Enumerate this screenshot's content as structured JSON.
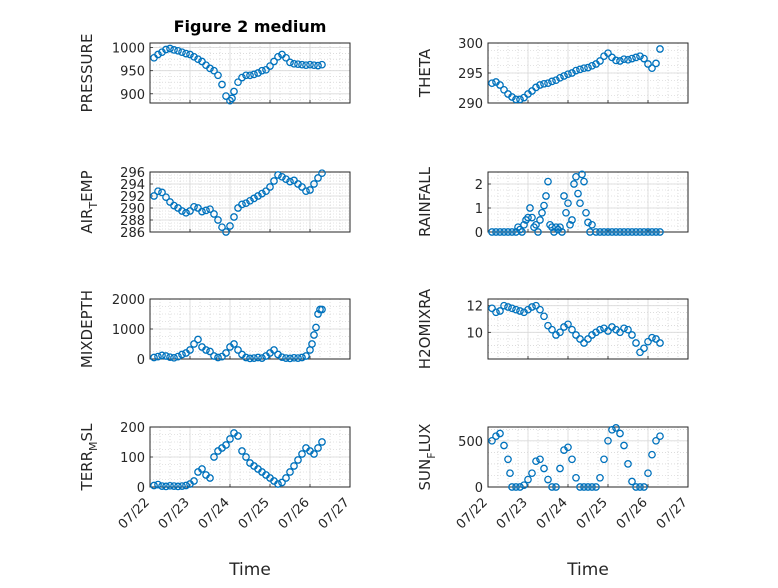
{
  "figure": {
    "title": "Figure 2 medium",
    "marker_color": "#0072BD",
    "x_axis_label": "Time",
    "x_ticks": [
      "07/22",
      "07/23",
      "07/24",
      "07/25",
      "07/26",
      "07/27"
    ]
  },
  "chart_data": [
    {
      "type": "scatter",
      "title": "Figure 2 medium",
      "ylabel": "PRESSURE",
      "xlim": [
        0,
        5
      ],
      "ylim": [
        880,
        1010
      ],
      "yticks": [
        900,
        950,
        1000
      ],
      "grid": true,
      "x": [
        0.1,
        0.2,
        0.3,
        0.4,
        0.5,
        0.6,
        0.7,
        0.8,
        0.9,
        1.0,
        1.1,
        1.2,
        1.3,
        1.4,
        1.5,
        1.6,
        1.7,
        1.8,
        1.9,
        2.0,
        2.05,
        2.1,
        2.2,
        2.3,
        2.4,
        2.5,
        2.6,
        2.7,
        2.8,
        2.9,
        3.0,
        3.1,
        3.2,
        3.3,
        3.4,
        3.5,
        3.6,
        3.7,
        3.8,
        3.9,
        4.0,
        4.1,
        4.2,
        4.3
      ],
      "y": [
        978,
        985,
        990,
        996,
        998,
        995,
        993,
        990,
        987,
        985,
        980,
        975,
        970,
        962,
        955,
        950,
        940,
        920,
        895,
        885,
        890,
        905,
        925,
        935,
        940,
        940,
        942,
        945,
        950,
        952,
        960,
        970,
        980,
        985,
        978,
        968,
        965,
        964,
        963,
        962,
        963,
        962,
        961,
        963
      ]
    },
    {
      "type": "scatter",
      "title": "",
      "ylabel": "THETA",
      "xlim": [
        0,
        5
      ],
      "ylim": [
        290,
        300
      ],
      "yticks": [
        290,
        295,
        300
      ],
      "grid": true,
      "x": [
        0.1,
        0.2,
        0.3,
        0.4,
        0.5,
        0.6,
        0.7,
        0.8,
        0.9,
        1.0,
        1.1,
        1.2,
        1.3,
        1.4,
        1.5,
        1.6,
        1.7,
        1.8,
        1.9,
        2.0,
        2.1,
        2.2,
        2.3,
        2.4,
        2.5,
        2.6,
        2.7,
        2.8,
        2.9,
        3.0,
        3.1,
        3.2,
        3.3,
        3.4,
        3.5,
        3.6,
        3.7,
        3.8,
        3.9,
        4.0,
        4.1,
        4.2,
        4.3
      ],
      "y": [
        293.3,
        293.5,
        293.0,
        292.2,
        291.5,
        291.0,
        290.6,
        290.6,
        290.9,
        291.5,
        292.0,
        292.6,
        293.0,
        293.2,
        293.3,
        293.6,
        293.8,
        294.2,
        294.5,
        294.8,
        295.0,
        295.4,
        295.6,
        295.8,
        295.9,
        296.2,
        296.5,
        297.0,
        297.8,
        298.3,
        297.6,
        297.1,
        297.0,
        297.3,
        297.2,
        297.4,
        297.6,
        297.8,
        297.4,
        296.5,
        295.8,
        296.6,
        299.0
      ]
    },
    {
      "type": "scatter",
      "title": "",
      "ylabel": "AIR_TEMP",
      "xlim": [
        0,
        5
      ],
      "ylim": [
        286,
        296
      ],
      "yticks": [
        286,
        288,
        290,
        292,
        294,
        296
      ],
      "grid": true,
      "x": [
        0.1,
        0.2,
        0.3,
        0.4,
        0.5,
        0.6,
        0.7,
        0.8,
        0.9,
        1.0,
        1.1,
        1.2,
        1.3,
        1.4,
        1.5,
        1.6,
        1.7,
        1.8,
        1.9,
        2.0,
        2.1,
        2.2,
        2.3,
        2.4,
        2.5,
        2.6,
        2.7,
        2.8,
        2.9,
        3.0,
        3.1,
        3.2,
        3.3,
        3.4,
        3.5,
        3.6,
        3.7,
        3.8,
        3.9,
        4.0,
        4.1,
        4.2,
        4.3
      ],
      "y": [
        292.0,
        292.8,
        292.6,
        291.8,
        291.0,
        290.4,
        290.0,
        289.5,
        289.2,
        289.5,
        290.2,
        290.0,
        289.4,
        289.6,
        289.8,
        289.0,
        288.0,
        286.8,
        286.0,
        287.0,
        288.5,
        290.0,
        290.6,
        290.8,
        291.2,
        291.6,
        292.0,
        292.4,
        292.8,
        293.5,
        294.5,
        295.5,
        295.2,
        294.8,
        294.4,
        294.6,
        294.0,
        293.5,
        292.8,
        293.0,
        294.0,
        295.0,
        295.8
      ]
    },
    {
      "type": "scatter",
      "title": "",
      "ylabel": "RAINFALL",
      "xlim": [
        0,
        5
      ],
      "ylim": [
        0,
        2.5
      ],
      "yticks": [
        0,
        1,
        2
      ],
      "grid": true,
      "x": [
        0.1,
        0.2,
        0.3,
        0.4,
        0.5,
        0.6,
        0.7,
        0.75,
        0.8,
        0.85,
        0.9,
        0.95,
        1.0,
        1.05,
        1.1,
        1.15,
        1.2,
        1.25,
        1.3,
        1.35,
        1.4,
        1.45,
        1.5,
        1.55,
        1.6,
        1.65,
        1.7,
        1.75,
        1.8,
        1.85,
        1.9,
        1.95,
        2.0,
        2.05,
        2.1,
        2.15,
        2.2,
        2.25,
        2.3,
        2.35,
        2.4,
        2.45,
        2.5,
        2.55,
        2.6,
        2.7,
        2.8,
        2.9,
        3.0,
        3.1,
        3.2,
        3.3,
        3.4,
        3.5,
        3.6,
        3.7,
        3.8,
        3.9,
        4.0,
        4.1,
        4.2,
        4.3
      ],
      "y": [
        0,
        0,
        0,
        0,
        0,
        0,
        0,
        0.2,
        0.1,
        0,
        0.3,
        0.5,
        0.6,
        1.0,
        0.6,
        0.2,
        0.3,
        0,
        0.5,
        0.8,
        1.1,
        1.5,
        2.1,
        0.3,
        0.2,
        0,
        0.2,
        0.1,
        0.2,
        0,
        1.5,
        0.8,
        1.2,
        0.3,
        0.5,
        2.0,
        2.3,
        1.6,
        1.2,
        2.4,
        2.1,
        0.8,
        0.4,
        0,
        0.3,
        0,
        0,
        0,
        0,
        0,
        0,
        0,
        0,
        0,
        0,
        0,
        0,
        0,
        0,
        0,
        0,
        0
      ]
    },
    {
      "type": "scatter",
      "title": "",
      "ylabel": "MIXDEPTH",
      "xlim": [
        0,
        5
      ],
      "ylim": [
        0,
        2000
      ],
      "yticks": [
        0,
        1000,
        2000
      ],
      "grid": true,
      "x": [
        0.1,
        0.2,
        0.3,
        0.4,
        0.5,
        0.6,
        0.7,
        0.8,
        0.9,
        1.0,
        1.1,
        1.2,
        1.3,
        1.4,
        1.5,
        1.6,
        1.7,
        1.8,
        1.9,
        2.0,
        2.1,
        2.2,
        2.3,
        2.4,
        2.5,
        2.6,
        2.7,
        2.8,
        2.9,
        3.0,
        3.1,
        3.2,
        3.3,
        3.4,
        3.5,
        3.6,
        3.7,
        3.8,
        3.9,
        4.0,
        4.05,
        4.1,
        4.15,
        4.2,
        4.25,
        4.3
      ],
      "y": [
        50,
        80,
        120,
        100,
        60,
        40,
        80,
        150,
        200,
        300,
        500,
        650,
        400,
        300,
        250,
        100,
        50,
        80,
        200,
        400,
        500,
        300,
        150,
        50,
        20,
        30,
        50,
        30,
        100,
        200,
        300,
        150,
        60,
        30,
        20,
        40,
        30,
        50,
        100,
        300,
        500,
        800,
        1050,
        1500,
        1650,
        1650
      ]
    },
    {
      "type": "scatter",
      "title": "",
      "ylabel": "H2OMIXRA",
      "xlim": [
        0,
        5
      ],
      "ylim": [
        8,
        12.5
      ],
      "yticks": [
        10,
        12
      ],
      "grid": true,
      "x": [
        0.1,
        0.2,
        0.3,
        0.4,
        0.5,
        0.6,
        0.7,
        0.8,
        0.9,
        1.0,
        1.1,
        1.2,
        1.3,
        1.4,
        1.5,
        1.6,
        1.7,
        1.8,
        1.9,
        2.0,
        2.1,
        2.2,
        2.3,
        2.4,
        2.5,
        2.6,
        2.7,
        2.8,
        2.9,
        3.0,
        3.1,
        3.2,
        3.3,
        3.4,
        3.5,
        3.6,
        3.7,
        3.8,
        3.9,
        4.0,
        4.1,
        4.2,
        4.3
      ],
      "y": [
        11.8,
        11.5,
        11.6,
        12.0,
        11.9,
        11.8,
        11.7,
        11.6,
        11.5,
        11.7,
        11.9,
        12.0,
        11.7,
        11.2,
        10.5,
        10.2,
        9.8,
        10.0,
        10.4,
        10.6,
        10.2,
        9.8,
        9.5,
        9.2,
        9.5,
        9.8,
        10.0,
        10.2,
        10.3,
        10.1,
        10.4,
        10.2,
        10.0,
        10.3,
        10.2,
        9.8,
        9.2,
        8.5,
        8.8,
        9.3,
        9.6,
        9.5,
        9.2
      ]
    },
    {
      "type": "scatter",
      "title": "",
      "ylabel": "TERR_MSL",
      "xlim": [
        0,
        5
      ],
      "ylim": [
        0,
        200
      ],
      "yticks": [
        0,
        100,
        200
      ],
      "grid": true,
      "x": [
        0.1,
        0.2,
        0.3,
        0.4,
        0.5,
        0.6,
        0.7,
        0.8,
        0.9,
        1.0,
        1.1,
        1.2,
        1.3,
        1.4,
        1.5,
        1.6,
        1.7,
        1.8,
        1.9,
        2.0,
        2.1,
        2.2,
        2.3,
        2.4,
        2.5,
        2.6,
        2.7,
        2.8,
        2.9,
        3.0,
        3.1,
        3.2,
        3.3,
        3.4,
        3.5,
        3.6,
        3.7,
        3.8,
        3.9,
        4.0,
        4.1,
        4.2,
        4.3
      ],
      "y": [
        5,
        8,
        3,
        2,
        4,
        3,
        2,
        3,
        5,
        10,
        20,
        50,
        60,
        40,
        30,
        100,
        120,
        130,
        140,
        160,
        180,
        170,
        120,
        100,
        80,
        70,
        60,
        50,
        40,
        30,
        20,
        10,
        15,
        30,
        50,
        70,
        90,
        110,
        130,
        120,
        110,
        130,
        150
      ]
    },
    {
      "type": "scatter",
      "title": "",
      "ylabel": "SUN_FLUX",
      "xlim": [
        0,
        5
      ],
      "ylim": [
        0,
        650
      ],
      "yticks": [
        0,
        500
      ],
      "grid": true,
      "x": [
        0.1,
        0.2,
        0.3,
        0.4,
        0.5,
        0.55,
        0.6,
        0.7,
        0.8,
        0.9,
        1.0,
        1.1,
        1.2,
        1.3,
        1.4,
        1.5,
        1.6,
        1.7,
        1.8,
        1.9,
        2.0,
        2.1,
        2.2,
        2.3,
        2.4,
        2.5,
        2.6,
        2.7,
        2.8,
        2.9,
        3.0,
        3.1,
        3.2,
        3.3,
        3.4,
        3.5,
        3.6,
        3.7,
        3.8,
        3.9,
        4.0,
        4.1,
        4.2,
        4.3
      ],
      "y": [
        500,
        550,
        580,
        450,
        300,
        150,
        0,
        0,
        0,
        20,
        80,
        150,
        280,
        300,
        200,
        80,
        0,
        0,
        200,
        400,
        430,
        300,
        100,
        0,
        0,
        0,
        0,
        0,
        100,
        300,
        500,
        620,
        640,
        580,
        450,
        250,
        60,
        0,
        0,
        0,
        150,
        350,
        500,
        550
      ]
    }
  ]
}
